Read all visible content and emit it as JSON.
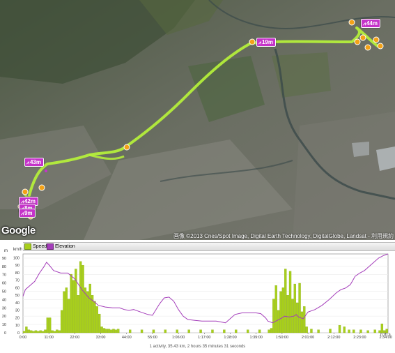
{
  "map": {
    "provider_logo": "Google",
    "copyright": "画像 ©2013 Cnes/Spot Image, Digital Earth Technology, DigitalGlobe, Landsat - 利用規約",
    "route_color": "#b8f53a",
    "marker_color": "#c533c9",
    "markers": [
      {
        "label": "19m",
        "icon": "elevation-icon"
      },
      {
        "label": "44m",
        "icon": "elevation-icon"
      },
      {
        "label": "43m",
        "icon": "elevation-icon"
      },
      {
        "label": "42m",
        "icon": "elevation-icon"
      },
      {
        "label": "8m",
        "icon": "elevation-icon"
      },
      {
        "label": "9m",
        "icon": "elevation-icon"
      }
    ]
  },
  "chart": {
    "legend": [
      {
        "label": "Speed",
        "color": "#a8cf1c"
      },
      {
        "label": "Elevation",
        "color": "#a43dba"
      }
    ],
    "unit_left": "m",
    "unit_right": "km/h",
    "unit_bottom_right": "h:m:s",
    "summary": "1 activity, 35.43 km, 2 hours 35 minutes 31 seconds"
  },
  "chart_data": {
    "type": "bar",
    "x_ticks": [
      "0:00",
      "11:00",
      "22:00",
      "33:00",
      "44:00",
      "55:00",
      "1:06:00",
      "1:17:00",
      "1:28:00",
      "1:39:00",
      "1:50:00",
      "2:01:00",
      "2:12:00",
      "2:23:00",
      "2:34:00"
    ],
    "x_range_min": [
      0,
      155
    ],
    "y_left_ticks": [
      0,
      10,
      20,
      30,
      40,
      50,
      60,
      70,
      80,
      90
    ],
    "y_left_range": [
      0,
      95
    ],
    "y_right_ticks": [
      0,
      10,
      20,
      30,
      40,
      50,
      60,
      70,
      80,
      90,
      100
    ],
    "y_right_range": [
      0,
      105
    ],
    "series": [
      {
        "name": "Speed",
        "type": "bar",
        "axis": "right",
        "points": [
          [
            0,
            2
          ],
          [
            1,
            8
          ],
          [
            2,
            4
          ],
          [
            3,
            3
          ],
          [
            4,
            2
          ],
          [
            5,
            3
          ],
          [
            6,
            2
          ],
          [
            7,
            3
          ],
          [
            8,
            2
          ],
          [
            9,
            4
          ],
          [
            10,
            20
          ],
          [
            11,
            20
          ],
          [
            12,
            3
          ],
          [
            13,
            2
          ],
          [
            14,
            4
          ],
          [
            15,
            3
          ],
          [
            16,
            30
          ],
          [
            17,
            55
          ],
          [
            18,
            60
          ],
          [
            19,
            45
          ],
          [
            20,
            78
          ],
          [
            21,
            70
          ],
          [
            22,
            85
          ],
          [
            23,
            50
          ],
          [
            24,
            95
          ],
          [
            25,
            90
          ],
          [
            26,
            60
          ],
          [
            27,
            55
          ],
          [
            28,
            65
          ],
          [
            29,
            50
          ],
          [
            30,
            42
          ],
          [
            31,
            35
          ],
          [
            32,
            25
          ],
          [
            33,
            8
          ],
          [
            34,
            6
          ],
          [
            35,
            5
          ],
          [
            36,
            5
          ],
          [
            37,
            4
          ],
          [
            38,
            5
          ],
          [
            39,
            4
          ],
          [
            40,
            5
          ],
          [
            45,
            4
          ],
          [
            50,
            4
          ],
          [
            55,
            4
          ],
          [
            60,
            4
          ],
          [
            65,
            4
          ],
          [
            70,
            4
          ],
          [
            75,
            4
          ],
          [
            80,
            4
          ],
          [
            85,
            4
          ],
          [
            90,
            4
          ],
          [
            95,
            4
          ],
          [
            100,
            4
          ],
          [
            104,
            4
          ],
          [
            105,
            6
          ],
          [
            106,
            45
          ],
          [
            107,
            63
          ],
          [
            108,
            30
          ],
          [
            109,
            55
          ],
          [
            110,
            60
          ],
          [
            111,
            85
          ],
          [
            112,
            50
          ],
          [
            113,
            82
          ],
          [
            114,
            45
          ],
          [
            115,
            65
          ],
          [
            116,
            40
          ],
          [
            117,
            66
          ],
          [
            118,
            28
          ],
          [
            119,
            35
          ],
          [
            120,
            8
          ],
          [
            122,
            5
          ],
          [
            125,
            4
          ],
          [
            130,
            5
          ],
          [
            134,
            10
          ],
          [
            136,
            8
          ],
          [
            138,
            4
          ],
          [
            140,
            4
          ],
          [
            143,
            4
          ],
          [
            146,
            3
          ],
          [
            149,
            4
          ],
          [
            151,
            3
          ],
          [
            152,
            12
          ],
          [
            153,
            3
          ],
          [
            154,
            5
          ]
        ]
      },
      {
        "name": "Elevation",
        "type": "line",
        "axis": "left",
        "points": [
          [
            0,
            44
          ],
          [
            1,
            52
          ],
          [
            3,
            57
          ],
          [
            5,
            62
          ],
          [
            7,
            72
          ],
          [
            9,
            80
          ],
          [
            10,
            85
          ],
          [
            11,
            82
          ],
          [
            13,
            75
          ],
          [
            16,
            72
          ],
          [
            19,
            72
          ],
          [
            22,
            65
          ],
          [
            25,
            52
          ],
          [
            28,
            42
          ],
          [
            30,
            38
          ],
          [
            32,
            33
          ],
          [
            35,
            31
          ],
          [
            38,
            30
          ],
          [
            41,
            30
          ],
          [
            43,
            28
          ],
          [
            45,
            27
          ],
          [
            47,
            28
          ],
          [
            50,
            25
          ],
          [
            53,
            22
          ],
          [
            55,
            21
          ],
          [
            58,
            35
          ],
          [
            60,
            42
          ],
          [
            62,
            43
          ],
          [
            64,
            38
          ],
          [
            66,
            28
          ],
          [
            68,
            20
          ],
          [
            70,
            16
          ],
          [
            73,
            15
          ],
          [
            76,
            14
          ],
          [
            79,
            14
          ],
          [
            82,
            14
          ],
          [
            84,
            13
          ],
          [
            86,
            12
          ],
          [
            88,
            17
          ],
          [
            90,
            22
          ],
          [
            93,
            24
          ],
          [
            96,
            24
          ],
          [
            99,
            24
          ],
          [
            101,
            23
          ],
          [
            103,
            18
          ],
          [
            104,
            14
          ],
          [
            106,
            12
          ],
          [
            108,
            15
          ],
          [
            110,
            18
          ],
          [
            111,
            20
          ],
          [
            113,
            19
          ],
          [
            115,
            20
          ],
          [
            116,
            22
          ],
          [
            117,
            19
          ],
          [
            119,
            17
          ],
          [
            121,
            25
          ],
          [
            124,
            28
          ],
          [
            127,
            33
          ],
          [
            130,
            40
          ],
          [
            133,
            48
          ],
          [
            135,
            52
          ],
          [
            137,
            54
          ],
          [
            139,
            58
          ],
          [
            141,
            68
          ],
          [
            143,
            72
          ],
          [
            145,
            75
          ],
          [
            147,
            80
          ],
          [
            149,
            85
          ],
          [
            151,
            90
          ],
          [
            153,
            93
          ],
          [
            155,
            95
          ]
        ]
      }
    ]
  }
}
